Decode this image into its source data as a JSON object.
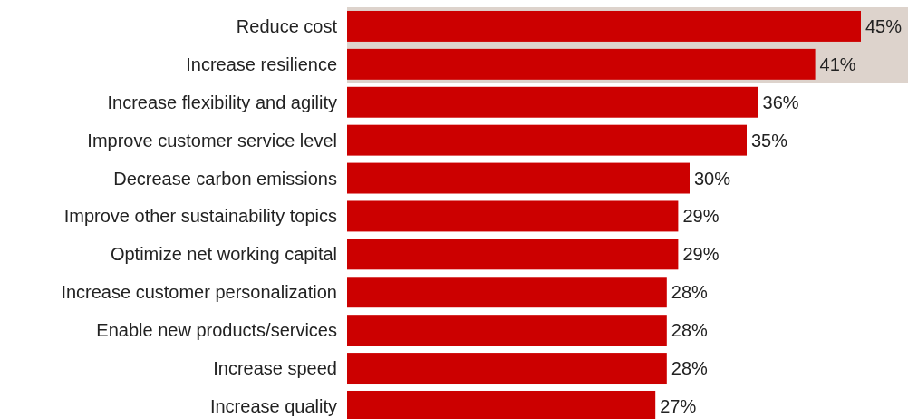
{
  "chart_data": {
    "type": "bar",
    "orientation": "horizontal",
    "categories": [
      "Reduce cost",
      "Increase resilience",
      "Increase flexibility and agility",
      "Improve customer service level",
      "Decrease carbon emissions",
      "Improve other sustainability topics",
      "Optimize net working capital",
      "Increase customer personalization",
      "Enable new products/services",
      "Increase speed",
      "Increase quality"
    ],
    "values": [
      45,
      41,
      36,
      35,
      30,
      29,
      29,
      28,
      28,
      28,
      27
    ],
    "color": "#cc0000",
    "value_labels": [
      "45%",
      "41%",
      "36%",
      "35%",
      "30%",
      "29%",
      "29%",
      "28%",
      "28%",
      "28%",
      "27%"
    ],
    "bands": [
      {
        "axis": "y",
        "from": "Reduce cost",
        "to": "Increase resilience",
        "color": "#ddd3cc"
      }
    ]
  }
}
